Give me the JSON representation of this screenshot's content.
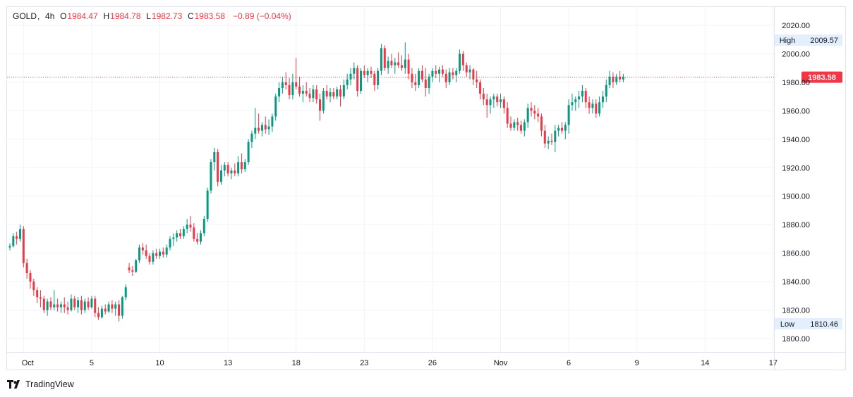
{
  "legend": {
    "symbol": "GOLD",
    "interval": "4h",
    "open_label": "O",
    "open": "1984.47",
    "high_label": "H",
    "high": "1984.78",
    "low_label": "L",
    "low": "1982.73",
    "close_label": "C",
    "close": "1983.58",
    "change": "−0.89 (−0.04%)"
  },
  "brand": {
    "name": "TradingView"
  },
  "colors": {
    "up": "#089981",
    "down": "#f23645",
    "grid": "#f0f3fa",
    "axis_text": "#131722",
    "badge_bg": "#e3effd"
  },
  "chart_data": {
    "type": "candlestick",
    "title": "GOLD, 4h",
    "ylim": [
      1790,
      2030
    ],
    "y_ticks": [
      "2020.00",
      "2000.00",
      "1980.00",
      "1960.00",
      "1940.00",
      "1920.00",
      "1900.00",
      "1880.00",
      "1860.00",
      "1840.00",
      "1820.00",
      "1800.00"
    ],
    "x_ticks": [
      {
        "label": "Oct",
        "index": 4
      },
      {
        "label": "5",
        "index": 24
      },
      {
        "label": "10",
        "index": 44
      },
      {
        "label": "13",
        "index": 64
      },
      {
        "label": "18",
        "index": 84
      },
      {
        "label": "23",
        "index": 104
      },
      {
        "label": "26",
        "index": 124
      },
      {
        "label": "Nov",
        "index": 144
      },
      {
        "label": "6",
        "index": 164
      },
      {
        "label": "9",
        "index": 184
      },
      {
        "label": "14",
        "index": 204
      },
      {
        "label": "17",
        "index": 224
      }
    ],
    "current_price": "1983.58",
    "high_marker": {
      "label": "High",
      "value": "2009.57"
    },
    "low_marker": {
      "label": "Low",
      "value": "1810.46"
    },
    "ohlc": [
      [
        1864,
        1867,
        1862,
        1865
      ],
      [
        1865,
        1874,
        1864,
        1872
      ],
      [
        1872,
        1875,
        1866,
        1870
      ],
      [
        1870,
        1880,
        1868,
        1877
      ],
      [
        1877,
        1879,
        1850,
        1853
      ],
      [
        1853,
        1856,
        1842,
        1846
      ],
      [
        1846,
        1848,
        1835,
        1840
      ],
      [
        1840,
        1842,
        1830,
        1834
      ],
      [
        1834,
        1836,
        1825,
        1829
      ],
      [
        1829,
        1834,
        1822,
        1828
      ],
      [
        1828,
        1830,
        1818,
        1820
      ],
      [
        1820,
        1828,
        1816,
        1826
      ],
      [
        1826,
        1829,
        1820,
        1822
      ],
      [
        1822,
        1834,
        1820,
        1824
      ],
      [
        1824,
        1828,
        1819,
        1822
      ],
      [
        1822,
        1826,
        1818,
        1824
      ],
      [
        1824,
        1829,
        1818,
        1822
      ],
      [
        1822,
        1826,
        1817,
        1820
      ],
      [
        1820,
        1831,
        1819,
        1828
      ],
      [
        1828,
        1830,
        1820,
        1822
      ],
      [
        1822,
        1829,
        1818,
        1827
      ],
      [
        1827,
        1830,
        1817,
        1820
      ],
      [
        1820,
        1828,
        1818,
        1826
      ],
      [
        1826,
        1829,
        1820,
        1822
      ],
      [
        1822,
        1830,
        1821,
        1828
      ],
      [
        1828,
        1830,
        1815,
        1818
      ],
      [
        1818,
        1822,
        1813,
        1815
      ],
      [
        1815,
        1823,
        1814,
        1821
      ],
      [
        1821,
        1824,
        1817,
        1819
      ],
      [
        1819,
        1826,
        1818,
        1824
      ],
      [
        1824,
        1827,
        1818,
        1821
      ],
      [
        1821,
        1826,
        1816,
        1824
      ],
      [
        1824,
        1827,
        1812,
        1816
      ],
      [
        1816,
        1830,
        1814,
        1829
      ],
      [
        1829,
        1838,
        1827,
        1836
      ],
      [
        1850,
        1853,
        1846,
        1848
      ],
      [
        1848,
        1851,
        1844,
        1847
      ],
      [
        1847,
        1856,
        1846,
        1855
      ],
      [
        1855,
        1866,
        1853,
        1864
      ],
      [
        1864,
        1867,
        1859,
        1862
      ],
      [
        1862,
        1866,
        1856,
        1858
      ],
      [
        1858,
        1860,
        1852,
        1854
      ],
      [
        1854,
        1862,
        1852,
        1860
      ],
      [
        1860,
        1863,
        1856,
        1858
      ],
      [
        1858,
        1863,
        1856,
        1861
      ],
      [
        1861,
        1864,
        1857,
        1859
      ],
      [
        1859,
        1866,
        1857,
        1864
      ],
      [
        1864,
        1872,
        1862,
        1870
      ],
      [
        1870,
        1874,
        1865,
        1871
      ],
      [
        1871,
        1876,
        1868,
        1874
      ],
      [
        1874,
        1877,
        1870,
        1872
      ],
      [
        1872,
        1879,
        1870,
        1877
      ],
      [
        1877,
        1884,
        1874,
        1880
      ],
      [
        1880,
        1886,
        1875,
        1878
      ],
      [
        1878,
        1881,
        1868,
        1870
      ],
      [
        1870,
        1874,
        1866,
        1868
      ],
      [
        1868,
        1876,
        1866,
        1874
      ],
      [
        1874,
        1886,
        1872,
        1884
      ],
      [
        1884,
        1906,
        1882,
        1904
      ],
      [
        1904,
        1926,
        1902,
        1924
      ],
      [
        1924,
        1934,
        1918,
        1931
      ],
      [
        1931,
        1933,
        1907,
        1910
      ],
      [
        1910,
        1922,
        1908,
        1918
      ],
      [
        1918,
        1924,
        1914,
        1922
      ],
      [
        1922,
        1924,
        1914,
        1916
      ],
      [
        1916,
        1920,
        1912,
        1918
      ],
      [
        1918,
        1923,
        1914,
        1916
      ],
      [
        1916,
        1928,
        1914,
        1924
      ],
      [
        1924,
        1930,
        1916,
        1919
      ],
      [
        1919,
        1926,
        1917,
        1924
      ],
      [
        1924,
        1940,
        1922,
        1938
      ],
      [
        1938,
        1946,
        1934,
        1944
      ],
      [
        1944,
        1962,
        1940,
        1948
      ],
      [
        1948,
        1958,
        1944,
        1946
      ],
      [
        1946,
        1952,
        1942,
        1950
      ],
      [
        1950,
        1956,
        1944,
        1947
      ],
      [
        1947,
        1954,
        1943,
        1949
      ],
      [
        1949,
        1958,
        1945,
        1956
      ],
      [
        1956,
        1972,
        1953,
        1970
      ],
      [
        1970,
        1980,
        1966,
        1976
      ],
      [
        1976,
        1984,
        1972,
        1980
      ],
      [
        1980,
        1987,
        1975,
        1978
      ],
      [
        1978,
        1983,
        1968,
        1971
      ],
      [
        1971,
        1986,
        1968,
        1980
      ],
      [
        1980,
        1997,
        1975,
        1977
      ],
      [
        1977,
        1984,
        1970,
        1972
      ],
      [
        1972,
        1978,
        1966,
        1974
      ],
      [
        1974,
        1980,
        1970,
        1972
      ],
      [
        1972,
        1976,
        1966,
        1969
      ],
      [
        1969,
        1978,
        1966,
        1975
      ],
      [
        1975,
        1978,
        1965,
        1968
      ],
      [
        1968,
        1972,
        1953,
        1960
      ],
      [
        1960,
        1976,
        1958,
        1974
      ],
      [
        1974,
        1978,
        1968,
        1970
      ],
      [
        1970,
        1976,
        1966,
        1973
      ],
      [
        1973,
        1976,
        1968,
        1970
      ],
      [
        1970,
        1977,
        1968,
        1975
      ],
      [
        1975,
        1978,
        1963,
        1970
      ],
      [
        1970,
        1982,
        1968,
        1978
      ],
      [
        1978,
        1986,
        1975,
        1982
      ],
      [
        1982,
        1990,
        1978,
        1986
      ],
      [
        1986,
        1994,
        1982,
        1990
      ],
      [
        1990,
        1992,
        1970,
        1974
      ],
      [
        1974,
        1990,
        1972,
        1988
      ],
      [
        1988,
        1992,
        1983,
        1985
      ],
      [
        1985,
        1990,
        1980,
        1988
      ],
      [
        1988,
        1991,
        1983,
        1986
      ],
      [
        1986,
        1988,
        1974,
        1978
      ],
      [
        1978,
        1990,
        1975,
        1988
      ],
      [
        1988,
        2007,
        1985,
        2004
      ],
      [
        2004,
        2006,
        1988,
        1990
      ],
      [
        1990,
        1998,
        1986,
        1995
      ],
      [
        1995,
        2000,
        1990,
        1992
      ],
      [
        1992,
        1997,
        1986,
        1994
      ],
      [
        1994,
        2001,
        1990,
        1992
      ],
      [
        1992,
        1999,
        1988,
        1990
      ],
      [
        1990,
        2008,
        1986,
        1996
      ],
      [
        1996,
        2000,
        1982,
        1986
      ],
      [
        1986,
        1990,
        1976,
        1980
      ],
      [
        1980,
        1986,
        1974,
        1978
      ],
      [
        1978,
        1990,
        1976,
        1988
      ],
      [
        1988,
        1992,
        1980,
        1982
      ],
      [
        1982,
        1990,
        1970,
        1976
      ],
      [
        1976,
        1986,
        1972,
        1984
      ],
      [
        1984,
        1990,
        1980,
        1988
      ],
      [
        1988,
        1992,
        1983,
        1986
      ],
      [
        1986,
        1991,
        1980,
        1989
      ],
      [
        1989,
        1992,
        1984,
        1986
      ],
      [
        1986,
        1989,
        1976,
        1980
      ],
      [
        1980,
        1990,
        1978,
        1987
      ],
      [
        1987,
        1990,
        1982,
        1985
      ],
      [
        1985,
        1990,
        1980,
        1988
      ],
      [
        1988,
        2003,
        1986,
        2000
      ],
      [
        2000,
        2002,
        1988,
        1992
      ],
      [
        1992,
        1994,
        1984,
        1987
      ],
      [
        1987,
        1992,
        1982,
        1989
      ],
      [
        1989,
        1990,
        1978,
        1982
      ],
      [
        1982,
        1988,
        1976,
        1980
      ],
      [
        1980,
        1982,
        1968,
        1972
      ],
      [
        1972,
        1976,
        1964,
        1968
      ],
      [
        1968,
        1972,
        1955,
        1964
      ],
      [
        1964,
        1970,
        1958,
        1968
      ],
      [
        1968,
        1972,
        1962,
        1970
      ],
      [
        1970,
        1972,
        1963,
        1966
      ],
      [
        1966,
        1972,
        1962,
        1968
      ],
      [
        1968,
        1970,
        1958,
        1962
      ],
      [
        1962,
        1966,
        1948,
        1951
      ],
      [
        1951,
        1956,
        1946,
        1948
      ],
      [
        1948,
        1954,
        1946,
        1952
      ],
      [
        1952,
        1955,
        1946,
        1950
      ],
      [
        1950,
        1953,
        1944,
        1946
      ],
      [
        1946,
        1954,
        1942,
        1952
      ],
      [
        1952,
        1965,
        1948,
        1962
      ],
      [
        1962,
        1966,
        1956,
        1960
      ],
      [
        1960,
        1964,
        1954,
        1958
      ],
      [
        1958,
        1962,
        1952,
        1956
      ],
      [
        1956,
        1958,
        1942,
        1946
      ],
      [
        1946,
        1950,
        1934,
        1937
      ],
      [
        1937,
        1942,
        1933,
        1939
      ],
      [
        1939,
        1944,
        1936,
        1938
      ],
      [
        1938,
        1950,
        1931,
        1946
      ],
      [
        1946,
        1950,
        1942,
        1948
      ],
      [
        1948,
        1952,
        1944,
        1946
      ],
      [
        1946,
        1952,
        1940,
        1950
      ],
      [
        1950,
        1968,
        1944,
        1964
      ],
      [
        1964,
        1972,
        1960,
        1966
      ],
      [
        1966,
        1970,
        1960,
        1968
      ],
      [
        1968,
        1974,
        1962,
        1970
      ],
      [
        1970,
        1978,
        1966,
        1974
      ],
      [
        1974,
        1976,
        1962,
        1966
      ],
      [
        1966,
        1970,
        1958,
        1962
      ],
      [
        1962,
        1968,
        1958,
        1965
      ],
      [
        1965,
        1968,
        1955,
        1958
      ],
      [
        1958,
        1970,
        1956,
        1966
      ],
      [
        1966,
        1974,
        1962,
        1970
      ],
      [
        1970,
        1982,
        1966,
        1978
      ],
      [
        1978,
        1988,
        1976,
        1984
      ],
      [
        1984,
        1987,
        1976,
        1980
      ],
      [
        1980,
        1986,
        1978,
        1984
      ],
      [
        1984,
        1988,
        1980,
        1982
      ],
      [
        1982,
        1986,
        1980,
        1984
      ]
    ]
  }
}
